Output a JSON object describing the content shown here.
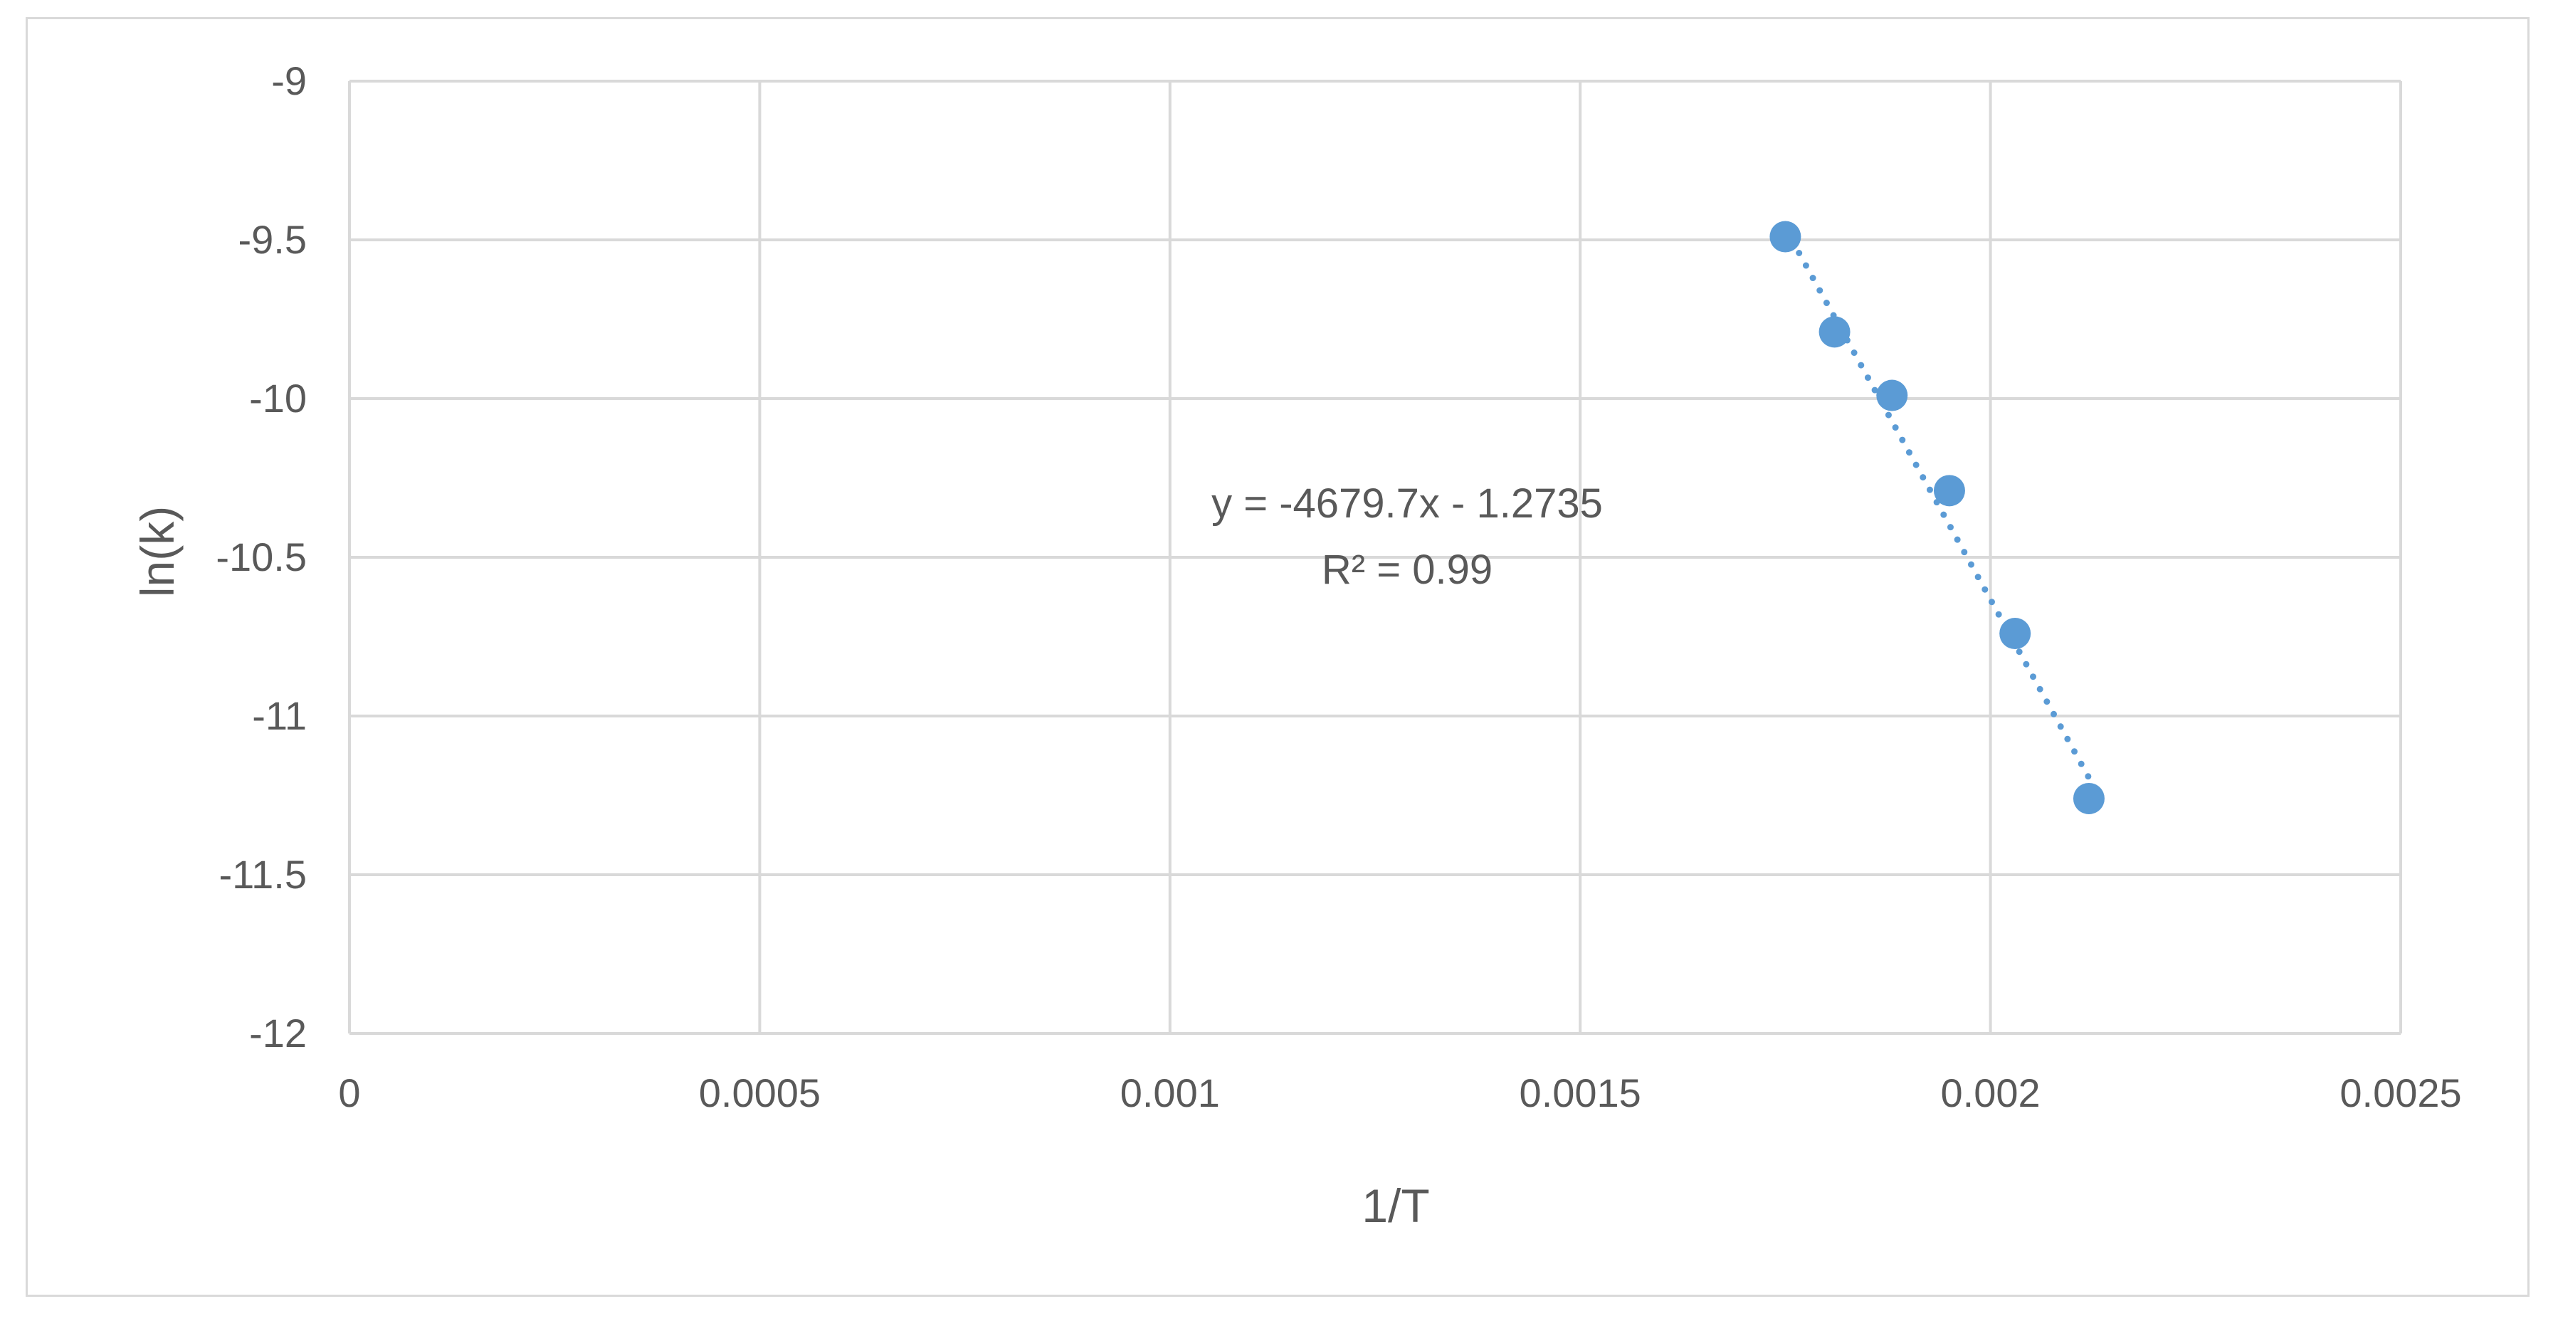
{
  "chart_data": {
    "type": "scatter",
    "xlabel": "1/T",
    "ylabel": "ln(k)",
    "xlim": [
      0,
      0.0025
    ],
    "ylim": [
      -12,
      -9
    ],
    "x_ticks": [
      "0",
      "0.0005",
      "0.001",
      "0.0015",
      "0.002",
      "0.0025"
    ],
    "y_ticks": [
      "-9",
      "-9.5",
      "-10",
      "-10.5",
      "-11",
      "-11.5",
      "-12"
    ],
    "grid": true,
    "series": [
      {
        "color": "#5b9bd5",
        "points": [
          {
            "x": 0.00175,
            "y": -9.49
          },
          {
            "x": 0.00181,
            "y": -9.79
          },
          {
            "x": 0.00188,
            "y": -9.99
          },
          {
            "x": 0.00195,
            "y": -10.29
          },
          {
            "x": 0.00203,
            "y": -10.74
          },
          {
            "x": 0.00212,
            "y": -11.26
          }
        ]
      }
    ],
    "trendline": {
      "type": "linear",
      "style": "dotted",
      "slope": -4679.7,
      "intercept": -1.2735,
      "equation": "y = -4679.7x - 1.2735",
      "r_squared": "R² = 0.99"
    }
  }
}
